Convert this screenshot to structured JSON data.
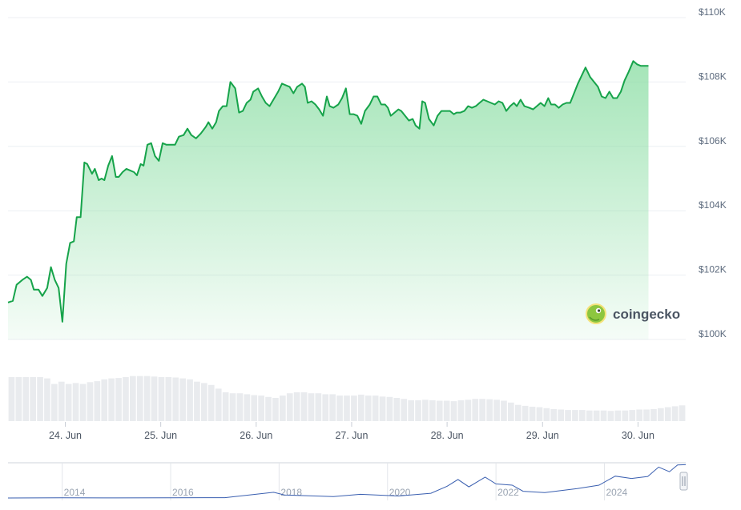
{
  "chart_data": [
    {
      "type": "area",
      "title": "",
      "ylabel": "",
      "xlabel": "",
      "ylim": [
        100000,
        110000
      ],
      "x_domain": [
        0,
        7.1
      ],
      "y_ticks": [
        {
          "value": 100000,
          "label": "$100K"
        },
        {
          "value": 102000,
          "label": "$102K"
        },
        {
          "value": 104000,
          "label": "$104K"
        },
        {
          "value": 106000,
          "label": "$106K"
        },
        {
          "value": 108000,
          "label": "$108K"
        },
        {
          "value": 110000,
          "label": "$110K"
        }
      ],
      "x_ticks": [
        {
          "value": 0.6,
          "label": "24. Jun"
        },
        {
          "value": 1.6,
          "label": "25. Jun"
        },
        {
          "value": 2.6,
          "label": "26. Jun"
        },
        {
          "value": 3.6,
          "label": "27. Jun"
        },
        {
          "value": 4.6,
          "label": "28. Jun"
        },
        {
          "value": 5.6,
          "label": "29. Jun"
        },
        {
          "value": 6.6,
          "label": "30. Jun"
        }
      ],
      "grid": true,
      "line_color": "#16a34a",
      "fill_color": "#86dca0",
      "series": [
        {
          "values": [
            [
              0.0,
              101150
            ],
            [
              0.05,
              101200
            ],
            [
              0.09,
              101700
            ],
            [
              0.15,
              101850
            ],
            [
              0.2,
              101950
            ],
            [
              0.24,
              101850
            ],
            [
              0.27,
              101550
            ],
            [
              0.32,
              101550
            ],
            [
              0.36,
              101350
            ],
            [
              0.41,
              101600
            ],
            [
              0.45,
              102250
            ],
            [
              0.49,
              101850
            ],
            [
              0.53,
              101600
            ],
            [
              0.57,
              100550
            ],
            [
              0.61,
              102350
            ],
            [
              0.65,
              103000
            ],
            [
              0.69,
              103050
            ],
            [
              0.72,
              103800
            ],
            [
              0.76,
              103800
            ],
            [
              0.8,
              105500
            ],
            [
              0.83,
              105450
            ],
            [
              0.88,
              105150
            ],
            [
              0.91,
              105300
            ],
            [
              0.95,
              104950
            ],
            [
              0.98,
              105000
            ],
            [
              1.01,
              104950
            ],
            [
              1.05,
              105400
            ],
            [
              1.09,
              105700
            ],
            [
              1.13,
              105050
            ],
            [
              1.16,
              105050
            ],
            [
              1.2,
              105200
            ],
            [
              1.24,
              105300
            ],
            [
              1.28,
              105250
            ],
            [
              1.32,
              105200
            ],
            [
              1.35,
              105100
            ],
            [
              1.39,
              105450
            ],
            [
              1.42,
              105400
            ],
            [
              1.46,
              106050
            ],
            [
              1.5,
              106100
            ],
            [
              1.54,
              105700
            ],
            [
              1.58,
              105550
            ],
            [
              1.62,
              106100
            ],
            [
              1.66,
              106050
            ],
            [
              1.7,
              106050
            ],
            [
              1.75,
              106050
            ],
            [
              1.79,
              106300
            ],
            [
              1.84,
              106350
            ],
            [
              1.88,
              106550
            ],
            [
              1.92,
              106350
            ],
            [
              1.97,
              106250
            ],
            [
              2.02,
              106400
            ],
            [
              2.07,
              106600
            ],
            [
              2.1,
              106750
            ],
            [
              2.14,
              106550
            ],
            [
              2.18,
              106750
            ],
            [
              2.21,
              107100
            ],
            [
              2.25,
              107250
            ],
            [
              2.29,
              107250
            ],
            [
              2.33,
              108000
            ],
            [
              2.38,
              107800
            ],
            [
              2.42,
              107050
            ],
            [
              2.46,
              107100
            ],
            [
              2.5,
              107350
            ],
            [
              2.54,
              107450
            ],
            [
              2.57,
              107700
            ],
            [
              2.62,
              107800
            ],
            [
              2.66,
              107550
            ],
            [
              2.7,
              107350
            ],
            [
              2.74,
              107250
            ],
            [
              2.78,
              107450
            ],
            [
              2.83,
              107700
            ],
            [
              2.87,
              107950
            ],
            [
              2.91,
              107900
            ],
            [
              2.95,
              107850
            ],
            [
              2.99,
              107650
            ],
            [
              3.03,
              107850
            ],
            [
              3.08,
              107950
            ],
            [
              3.11,
              107850
            ],
            [
              3.14,
              107350
            ],
            [
              3.18,
              107400
            ],
            [
              3.22,
              107300
            ],
            [
              3.26,
              107150
            ],
            [
              3.3,
              106950
            ],
            [
              3.34,
              107550
            ],
            [
              3.37,
              107250
            ],
            [
              3.41,
              107200
            ],
            [
              3.46,
              107300
            ],
            [
              3.5,
              107500
            ],
            [
              3.54,
              107800
            ],
            [
              3.58,
              107000
            ],
            [
              3.62,
              107000
            ],
            [
              3.66,
              106950
            ],
            [
              3.7,
              106700
            ],
            [
              3.74,
              107100
            ],
            [
              3.79,
              107300
            ],
            [
              3.83,
              107550
            ],
            [
              3.87,
              107550
            ],
            [
              3.91,
              107300
            ],
            [
              3.95,
              107300
            ],
            [
              3.98,
              107200
            ],
            [
              4.01,
              106950
            ],
            [
              4.05,
              107050
            ],
            [
              4.09,
              107150
            ],
            [
              4.12,
              107100
            ],
            [
              4.16,
              106950
            ],
            [
              4.2,
              106800
            ],
            [
              4.24,
              106850
            ],
            [
              4.27,
              106650
            ],
            [
              4.31,
              106550
            ],
            [
              4.34,
              107400
            ],
            [
              4.37,
              107350
            ],
            [
              4.41,
              106850
            ],
            [
              4.46,
              106650
            ],
            [
              4.5,
              106950
            ],
            [
              4.54,
              107100
            ],
            [
              4.58,
              107100
            ],
            [
              4.63,
              107100
            ],
            [
              4.67,
              107000
            ],
            [
              4.7,
              107050
            ],
            [
              4.74,
              107050
            ],
            [
              4.78,
              107100
            ],
            [
              4.82,
              107250
            ],
            [
              4.86,
              107200
            ],
            [
              4.9,
              107250
            ],
            [
              4.94,
              107350
            ],
            [
              4.98,
              107450
            ],
            [
              5.02,
              107400
            ],
            [
              5.06,
              107350
            ],
            [
              5.1,
              107300
            ],
            [
              5.14,
              107400
            ],
            [
              5.18,
              107350
            ],
            [
              5.22,
              107100
            ],
            [
              5.26,
              107250
            ],
            [
              5.3,
              107350
            ],
            [
              5.33,
              107250
            ],
            [
              5.37,
              107450
            ],
            [
              5.41,
              107250
            ],
            [
              5.46,
              107200
            ],
            [
              5.5,
              107150
            ],
            [
              5.54,
              107250
            ],
            [
              5.58,
              107350
            ],
            [
              5.62,
              107250
            ],
            [
              5.66,
              107500
            ],
            [
              5.69,
              107300
            ],
            [
              5.73,
              107300
            ],
            [
              5.77,
              107200
            ],
            [
              5.81,
              107300
            ],
            [
              5.85,
              107350
            ],
            [
              5.89,
              107350
            ],
            [
              5.93,
              107650
            ],
            [
              5.97,
              107950
            ],
            [
              6.01,
              108200
            ],
            [
              6.05,
              108450
            ],
            [
              6.1,
              108150
            ],
            [
              6.14,
              108000
            ],
            [
              6.18,
              107850
            ],
            [
              6.22,
              107550
            ],
            [
              6.26,
              107500
            ],
            [
              6.3,
              107700
            ],
            [
              6.34,
              107500
            ],
            [
              6.38,
              107500
            ],
            [
              6.42,
              107700
            ],
            [
              6.46,
              108050
            ],
            [
              6.5,
              108300
            ],
            [
              6.55,
              108650
            ],
            [
              6.59,
              108550
            ],
            [
              6.63,
              108500
            ],
            [
              6.67,
              108500
            ],
            [
              6.71,
              108500
            ]
          ]
        }
      ]
    },
    {
      "type": "bar",
      "title": "",
      "description_role": "volume",
      "bar_color": "#e9ebee",
      "ylim": [
        0,
        1
      ],
      "values": [
        0.95,
        0.95,
        0.95,
        0.95,
        0.95,
        0.92,
        0.8,
        0.85,
        0.8,
        0.82,
        0.8,
        0.84,
        0.86,
        0.9,
        0.92,
        0.93,
        0.95,
        0.97,
        0.97,
        0.97,
        0.96,
        0.95,
        0.95,
        0.94,
        0.92,
        0.9,
        0.85,
        0.82,
        0.78,
        0.7,
        0.62,
        0.6,
        0.6,
        0.58,
        0.56,
        0.55,
        0.52,
        0.5,
        0.55,
        0.6,
        0.62,
        0.62,
        0.6,
        0.6,
        0.58,
        0.58,
        0.55,
        0.55,
        0.55,
        0.57,
        0.55,
        0.55,
        0.53,
        0.52,
        0.5,
        0.48,
        0.45,
        0.45,
        0.46,
        0.45,
        0.44,
        0.44,
        0.43,
        0.45,
        0.46,
        0.48,
        0.48,
        0.47,
        0.46,
        0.44,
        0.4,
        0.35,
        0.33,
        0.31,
        0.3,
        0.28,
        0.26,
        0.25,
        0.24,
        0.24,
        0.24,
        0.23,
        0.23,
        0.23,
        0.22,
        0.23,
        0.23,
        0.24,
        0.25,
        0.25,
        0.26,
        0.28,
        0.3,
        0.32,
        0.34
      ]
    },
    {
      "type": "line",
      "title": "",
      "description_role": "navigator",
      "line_color": "#3a5fb0",
      "xlim": [
        2013.0,
        2025.5
      ],
      "x_ticks": [
        {
          "value": 2014,
          "label": "2014"
        },
        {
          "value": 2016,
          "label": "2016"
        },
        {
          "value": 2018,
          "label": "2018"
        },
        {
          "value": 2020,
          "label": "2020"
        },
        {
          "value": 2022,
          "label": "2022"
        },
        {
          "value": 2024,
          "label": "2024"
        }
      ],
      "series": [
        {
          "values": [
            [
              2013.0,
              0.0
            ],
            [
              2014.0,
              0.005
            ],
            [
              2015.0,
              0.003
            ],
            [
              2016.0,
              0.006
            ],
            [
              2017.0,
              0.01
            ],
            [
              2017.9,
              0.17
            ],
            [
              2018.1,
              0.09
            ],
            [
              2018.5,
              0.07
            ],
            [
              2019.0,
              0.04
            ],
            [
              2019.5,
              0.11
            ],
            [
              2020.2,
              0.06
            ],
            [
              2020.8,
              0.14
            ],
            [
              2021.1,
              0.35
            ],
            [
              2021.3,
              0.55
            ],
            [
              2021.5,
              0.33
            ],
            [
              2021.8,
              0.62
            ],
            [
              2022.0,
              0.42
            ],
            [
              2022.3,
              0.38
            ],
            [
              2022.5,
              0.2
            ],
            [
              2022.9,
              0.16
            ],
            [
              2023.2,
              0.22
            ],
            [
              2023.5,
              0.28
            ],
            [
              2023.9,
              0.38
            ],
            [
              2024.2,
              0.65
            ],
            [
              2024.5,
              0.58
            ],
            [
              2024.8,
              0.64
            ],
            [
              2025.0,
              0.92
            ],
            [
              2025.2,
              0.78
            ],
            [
              2025.35,
              0.98
            ],
            [
              2025.5,
              0.99
            ]
          ]
        }
      ]
    }
  ],
  "watermark": {
    "brand_name": "coingecko",
    "logo_icon": "gecko-logo-icon"
  }
}
